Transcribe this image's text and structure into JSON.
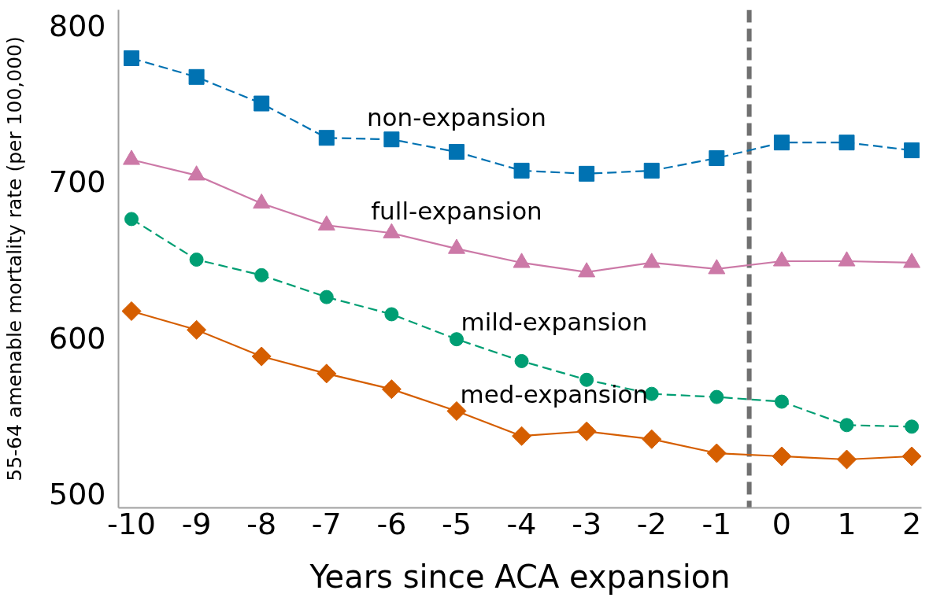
{
  "chart_data": {
    "type": "line",
    "xlabel": "Years since ACA expansion",
    "ylabel": "55-64 amenable mortality rate (per 100,000)",
    "x": [
      -10,
      -9,
      -8,
      -7,
      -6,
      -5,
      -4,
      -3,
      -2,
      -1,
      0,
      1,
      2
    ],
    "series": [
      {
        "name": "non-expansion",
        "color": "#0072b2",
        "marker": "square",
        "line_style": "dashed",
        "values": [
          779,
          767,
          750,
          728,
          727,
          719,
          707,
          705,
          707,
          715,
          725,
          725,
          720
        ]
      },
      {
        "name": "full-expansion",
        "color": "#cc79a7",
        "marker": "triangle",
        "line_style": "solid",
        "values": [
          714,
          704,
          686,
          672,
          667,
          657,
          648,
          642,
          648,
          644,
          649,
          649,
          648
        ]
      },
      {
        "name": "mild-expansion",
        "color": "#009e73",
        "marker": "circle",
        "line_style": "dashed",
        "values": [
          676,
          650,
          640,
          626,
          615,
          599,
          585,
          573,
          564,
          562,
          559,
          544,
          543
        ]
      },
      {
        "name": "med-expansion",
        "color": "#d55e00",
        "marker": "diamond",
        "line_style": "solid",
        "values": [
          617,
          605,
          588,
          577,
          567,
          553,
          537,
          540,
          535,
          526,
          524,
          522,
          524
        ]
      }
    ],
    "xlim": [
      -10.2,
      2.15
    ],
    "ylim": [
      491,
      810
    ],
    "xticks": [
      -10,
      -9,
      -8,
      -7,
      -6,
      -5,
      -4,
      -3,
      -2,
      -1,
      0,
      1,
      2
    ],
    "yticks": [
      500,
      600,
      700,
      800
    ],
    "ref_lines": [
      {
        "axis": "x",
        "value": -0.5,
        "color": "#707070",
        "line_style": "dashed"
      }
    ]
  }
}
